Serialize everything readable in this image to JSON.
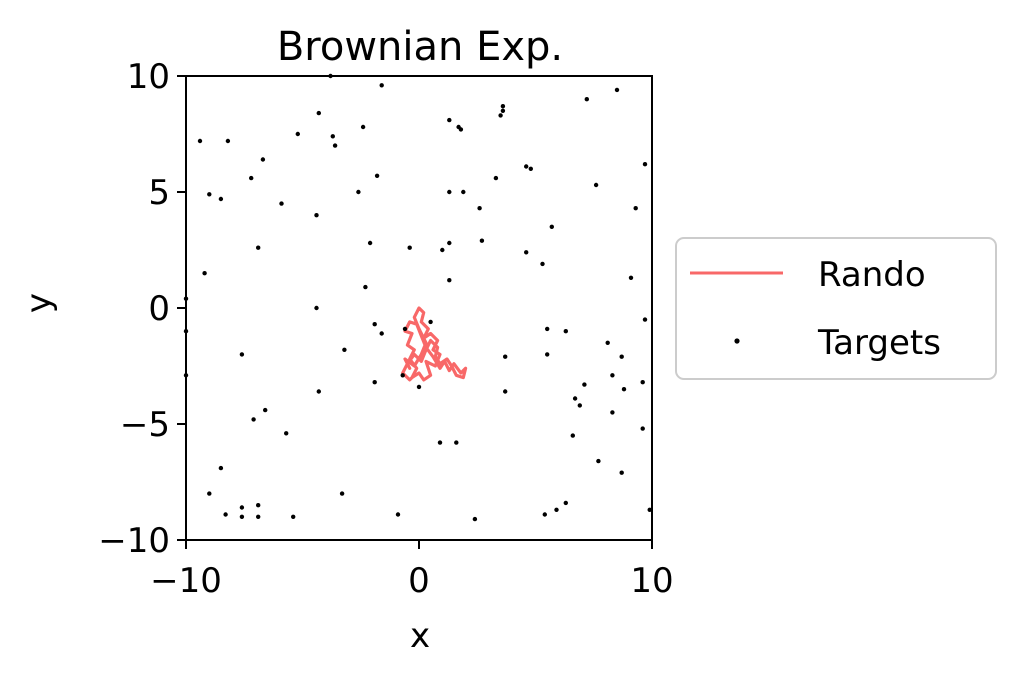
{
  "chart_data": {
    "type": "scatter",
    "title": "Brownian Exp.",
    "xlabel": "x",
    "ylabel": "y",
    "xlim": [
      -10,
      10
    ],
    "ylim": [
      -10,
      10
    ],
    "x_ticks": [
      -10,
      0,
      10
    ],
    "x_tick_labels": [
      "−10",
      "0",
      "10"
    ],
    "y_ticks": [
      10,
      5,
      0,
      -5,
      -10
    ],
    "y_tick_labels": [
      "10",
      "5",
      "0",
      "−5",
      "−10"
    ],
    "grid": false,
    "legend_placement": "right, outside plot",
    "series": [
      {
        "name": "Rando",
        "kind": "line",
        "color": "#f86868",
        "points": [
          [
            -0.4,
            -2.6
          ],
          [
            -0.6,
            -2.2
          ],
          [
            -0.2,
            -2.5
          ],
          [
            0.1,
            -2.0
          ],
          [
            0.3,
            -1.5
          ],
          [
            0.0,
            -0.9
          ],
          [
            -0.2,
            -0.4
          ],
          [
            0.0,
            0.0
          ],
          [
            0.2,
            -0.2
          ],
          [
            0.1,
            -0.6
          ],
          [
            0.4,
            -0.9
          ],
          [
            0.2,
            -1.3
          ],
          [
            0.5,
            -1.1
          ],
          [
            0.8,
            -1.4
          ],
          [
            0.6,
            -1.8
          ],
          [
            0.9,
            -2.0
          ],
          [
            0.7,
            -2.5
          ],
          [
            0.3,
            -2.3
          ],
          [
            0.5,
            -2.9
          ],
          [
            0.2,
            -3.1
          ],
          [
            0.0,
            -2.8
          ],
          [
            -0.3,
            -3.0
          ],
          [
            -0.1,
            -2.6
          ],
          [
            -0.4,
            -2.2
          ],
          [
            -0.2,
            -1.8
          ],
          [
            -0.5,
            -1.6
          ],
          [
            -0.3,
            -1.1
          ],
          [
            -0.6,
            -1.0
          ],
          [
            -0.4,
            -0.6
          ],
          [
            -0.1,
            -0.7
          ],
          [
            0.1,
            -1.2
          ],
          [
            0.3,
            -1.7
          ],
          [
            0.6,
            -2.1
          ],
          [
            0.9,
            -2.6
          ],
          [
            1.1,
            -2.3
          ],
          [
            1.3,
            -2.7
          ],
          [
            1.5,
            -2.4
          ],
          [
            1.8,
            -2.8
          ],
          [
            2.0,
            -2.6
          ],
          [
            1.9,
            -3.0
          ],
          [
            1.6,
            -2.9
          ],
          [
            1.4,
            -2.5
          ],
          [
            1.2,
            -2.2
          ],
          [
            0.9,
            -2.4
          ],
          [
            0.7,
            -2.1
          ],
          [
            0.8,
            -1.7
          ],
          [
            0.5,
            -1.4
          ],
          [
            0.3,
            -1.8
          ],
          [
            0.1,
            -2.3
          ],
          [
            -0.2,
            -2.0
          ],
          [
            -0.5,
            -2.4
          ],
          [
            -0.7,
            -2.8
          ],
          [
            -0.4,
            -3.1
          ],
          [
            -0.2,
            -2.9
          ]
        ]
      },
      {
        "name": "Targets",
        "kind": "scatter",
        "color": "#000000",
        "points": [
          [
            -9.4,
            7.2
          ],
          [
            -8.2,
            7.2
          ],
          [
            -6.7,
            6.4
          ],
          [
            -5.2,
            7.5
          ],
          [
            -3.7,
            7.4
          ],
          [
            -3.6,
            7.0
          ],
          [
            -2.4,
            7.8
          ],
          [
            -1.6,
            9.6
          ],
          [
            -3.8,
            10.0
          ],
          [
            -4.3,
            8.4
          ],
          [
            1.3,
            8.1
          ],
          [
            1.7,
            7.8
          ],
          [
            1.8,
            7.7
          ],
          [
            3.5,
            8.3
          ],
          [
            3.6,
            8.5
          ],
          [
            3.6,
            8.7
          ],
          [
            7.2,
            9.0
          ],
          [
            8.5,
            9.4
          ],
          [
            9.7,
            6.2
          ],
          [
            -9.0,
            4.9
          ],
          [
            -8.5,
            4.7
          ],
          [
            -7.2,
            5.6
          ],
          [
            -5.9,
            4.5
          ],
          [
            -4.4,
            4.0
          ],
          [
            -2.6,
            5.0
          ],
          [
            -1.8,
            5.7
          ],
          [
            1.3,
            5.0
          ],
          [
            1.9,
            5.0
          ],
          [
            2.6,
            4.3
          ],
          [
            3.3,
            5.6
          ],
          [
            4.6,
            6.1
          ],
          [
            4.8,
            6.0
          ],
          [
            7.6,
            5.3
          ],
          [
            9.3,
            4.3
          ],
          [
            5.7,
            3.5
          ],
          [
            -6.9,
            2.6
          ],
          [
            -2.1,
            2.8
          ],
          [
            -0.4,
            2.6
          ],
          [
            1.0,
            2.5
          ],
          [
            1.3,
            2.8
          ],
          [
            2.7,
            2.9
          ],
          [
            4.6,
            2.4
          ],
          [
            5.3,
            1.9
          ],
          [
            -9.2,
            1.5
          ],
          [
            -2.3,
            0.9
          ],
          [
            1.3,
            1.2
          ],
          [
            9.1,
            1.3
          ],
          [
            -10.0,
            0.4
          ],
          [
            -4.4,
            0.0
          ],
          [
            9.7,
            -0.5
          ],
          [
            -10.0,
            -1.0
          ],
          [
            -1.9,
            -0.7
          ],
          [
            -1.6,
            -1.1
          ],
          [
            -0.6,
            -0.9
          ],
          [
            0.5,
            -0.6
          ],
          [
            5.5,
            -0.9
          ],
          [
            6.3,
            -1.0
          ],
          [
            8.1,
            -1.5
          ],
          [
            -7.6,
            -2.0
          ],
          [
            -3.2,
            -1.8
          ],
          [
            3.7,
            -2.1
          ],
          [
            5.5,
            -2.0
          ],
          [
            8.7,
            -2.1
          ],
          [
            -10.0,
            -2.9
          ],
          [
            -1.9,
            -3.2
          ],
          [
            -0.7,
            -2.9
          ],
          [
            0.0,
            -3.4
          ],
          [
            3.7,
            -3.6
          ],
          [
            7.1,
            -3.3
          ],
          [
            8.3,
            -2.9
          ],
          [
            9.6,
            -3.2
          ],
          [
            -4.3,
            -3.6
          ],
          [
            6.7,
            -3.9
          ],
          [
            6.9,
            -4.2
          ],
          [
            8.8,
            -3.5
          ],
          [
            -6.6,
            -4.4
          ],
          [
            -7.1,
            -4.8
          ],
          [
            8.3,
            -4.5
          ],
          [
            9.6,
            -5.2
          ],
          [
            -5.7,
            -5.4
          ],
          [
            0.9,
            -5.8
          ],
          [
            1.6,
            -5.8
          ],
          [
            6.6,
            -5.5
          ],
          [
            7.7,
            -6.6
          ],
          [
            8.7,
            -7.1
          ],
          [
            -8.5,
            -6.9
          ],
          [
            -3.3,
            -8.0
          ],
          [
            -9.0,
            -8.0
          ],
          [
            -7.6,
            -8.6
          ],
          [
            -6.9,
            -8.5
          ],
          [
            -8.3,
            -8.9
          ],
          [
            -7.6,
            -9.0
          ],
          [
            -6.9,
            -9.0
          ],
          [
            -5.4,
            -9.0
          ],
          [
            -0.9,
            -8.9
          ],
          [
            2.4,
            -9.1
          ],
          [
            5.4,
            -8.9
          ],
          [
            5.9,
            -8.7
          ],
          [
            6.3,
            -8.4
          ],
          [
            9.9,
            -8.7
          ]
        ]
      }
    ]
  }
}
